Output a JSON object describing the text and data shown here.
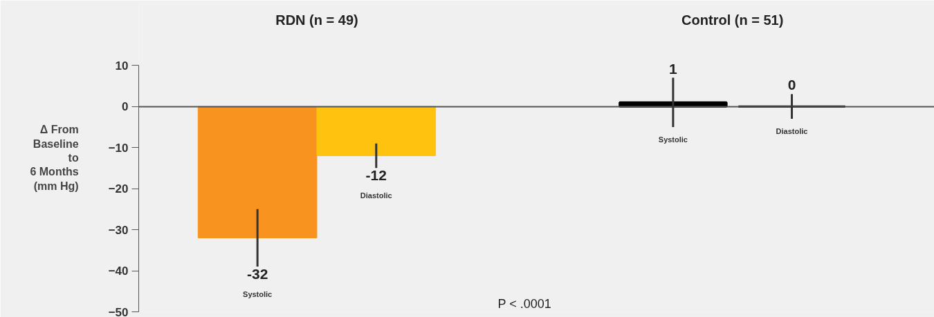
{
  "chart_data": {
    "type": "bar",
    "ylabel": "Δ From\nBaseline\nto\n6 Months\n(mm Hg)",
    "categories": [
      "Systolic",
      "Diastolic",
      "Systolic",
      "Diastolic"
    ],
    "values": [
      -32,
      -12,
      1,
      0
    ],
    "colors": [
      "#f7931e",
      "#ffc20e",
      "#000000",
      "#000000"
    ],
    "errors": [
      [
        -39,
        -25
      ],
      [
        -15,
        -9
      ],
      [
        -5,
        7
      ],
      [
        -3,
        3
      ]
    ],
    "data_labels": true,
    "annotations": [
      "RDN (n = 49)",
      "Control (n = 51)",
      "P < .0001"
    ],
    "ylim": [
      -50,
      10
    ],
    "yticks": [
      10,
      0,
      -10,
      -20,
      -30,
      -40,
      -50
    ]
  }
}
